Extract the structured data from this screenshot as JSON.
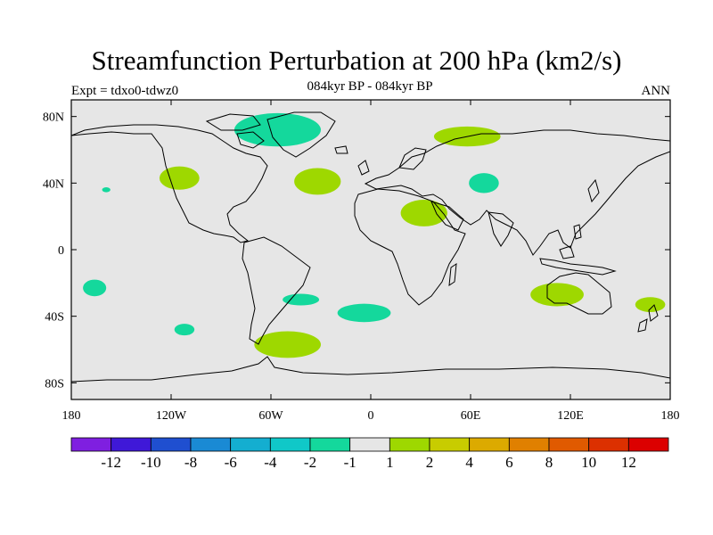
{
  "chart_data": {
    "type": "heatmap",
    "title": "Streamfunction Perturbation at 200 hPa (km2/s)",
    "subtitle": "084kyr BP - 084kyr BP",
    "left_label": "Expt = tdxo0-tdwz0",
    "right_label": "ANN",
    "xlim": [
      -180,
      180
    ],
    "ylim": [
      -90,
      90
    ],
    "x_ticks": [
      {
        "value": -180,
        "label": "180"
      },
      {
        "value": -120,
        "label": "120W"
      },
      {
        "value": -60,
        "label": "60W"
      },
      {
        "value": 0,
        "label": "0"
      },
      {
        "value": 60,
        "label": "60E"
      },
      {
        "value": 120,
        "label": "120E"
      },
      {
        "value": 180,
        "label": "180"
      }
    ],
    "y_ticks": [
      {
        "value": 80,
        "label": "80N"
      },
      {
        "value": 40,
        "label": "40N"
      },
      {
        "value": 0,
        "label": "0"
      },
      {
        "value": -40,
        "label": "40S"
      },
      {
        "value": -80,
        "label": "80S"
      }
    ],
    "background_color": "#e6e6e6",
    "colorbar": {
      "colors": [
        "#7f1fe0",
        "#3f18d8",
        "#1f4fd0",
        "#1a8ad4",
        "#14aed0",
        "#10c8c8",
        "#14d89c",
        "#e6e6e6",
        "#9ed800",
        "#c8cc00",
        "#dcaa00",
        "#e08000",
        "#e05a00",
        "#dc3000",
        "#dc0000"
      ],
      "labels": [
        "-12",
        "-10",
        "-8",
        "-6",
        "-4",
        "-2",
        "-1",
        "1",
        "2",
        "4",
        "6",
        "8",
        "10",
        "12"
      ]
    },
    "anomalies": [
      {
        "lon": -56,
        "lat": 72,
        "rx": 26,
        "ry": 10,
        "color": "#14d89c",
        "sign": "negative"
      },
      {
        "lon": -115,
        "lat": 43,
        "rx": 12,
        "ry": 7,
        "color": "#9ed800",
        "sign": "positive"
      },
      {
        "lon": -159,
        "lat": 36,
        "rx": 2.5,
        "ry": 1.5,
        "color": "#14d89c",
        "sign": "negative"
      },
      {
        "lon": -32,
        "lat": 41,
        "rx": 14,
        "ry": 8,
        "color": "#9ed800",
        "sign": "positive"
      },
      {
        "lon": 58,
        "lat": 68,
        "rx": 20,
        "ry": 6,
        "color": "#9ed800",
        "sign": "positive"
      },
      {
        "lon": 68,
        "lat": 40,
        "rx": 9,
        "ry": 6,
        "color": "#14d89c",
        "sign": "negative"
      },
      {
        "lon": 32,
        "lat": 22,
        "rx": 14,
        "ry": 8,
        "color": "#9ed800",
        "sign": "positive"
      },
      {
        "lon": -166,
        "lat": -23,
        "rx": 7,
        "ry": 5,
        "color": "#14d89c",
        "sign": "negative"
      },
      {
        "lon": -112,
        "lat": -48,
        "rx": 6,
        "ry": 3.5,
        "color": "#14d89c",
        "sign": "negative"
      },
      {
        "lon": -42,
        "lat": -30,
        "rx": 11,
        "ry": 3.5,
        "color": "#14d89c",
        "sign": "negative"
      },
      {
        "lon": -4,
        "lat": -38,
        "rx": 16,
        "ry": 5.5,
        "color": "#14d89c",
        "sign": "negative"
      },
      {
        "lon": -50,
        "lat": -57,
        "rx": 20,
        "ry": 8,
        "color": "#9ed800",
        "sign": "positive"
      },
      {
        "lon": 112,
        "lat": -27,
        "rx": 16,
        "ry": 7,
        "color": "#9ed800",
        "sign": "positive"
      },
      {
        "lon": 168,
        "lat": -33,
        "rx": 9,
        "ry": 4.5,
        "color": "#9ed800",
        "sign": "positive"
      }
    ]
  }
}
